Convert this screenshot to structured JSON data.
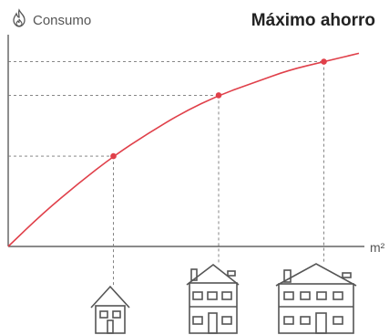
{
  "header": {
    "title": "Máximo ahorro",
    "y_label": "Consumo",
    "y_icon": "flame-icon"
  },
  "x_label": "m²",
  "colors": {
    "curve": "#e0404a",
    "axis": "#444444",
    "guide": "#777777",
    "house": "#555555"
  },
  "chart_data": {
    "type": "line",
    "title": "Máximo ahorro",
    "ylabel": "Consumo",
    "xlabel": "m²",
    "grid": false,
    "marked_points": [
      {
        "house": "single-storey-house",
        "x": 0.3,
        "y": 0.43
      },
      {
        "house": "two-storey-house",
        "x": 0.6,
        "y": 0.72
      },
      {
        "house": "large-two-storey-house",
        "x": 0.9,
        "y": 0.88
      }
    ],
    "curve_x": [
      0,
      0.1,
      0.2,
      0.3,
      0.4,
      0.5,
      0.6,
      0.7,
      0.8,
      0.9,
      1.0
    ],
    "curve_y": [
      0,
      0.16,
      0.3,
      0.43,
      0.54,
      0.64,
      0.72,
      0.78,
      0.84,
      0.88,
      0.92
    ],
    "xlim": [
      0,
      1.0
    ],
    "ylim": [
      0,
      1.0
    ]
  },
  "houses": [
    {
      "name": "single-storey-house-icon"
    },
    {
      "name": "two-storey-house-icon"
    },
    {
      "name": "large-two-storey-house-icon"
    }
  ]
}
